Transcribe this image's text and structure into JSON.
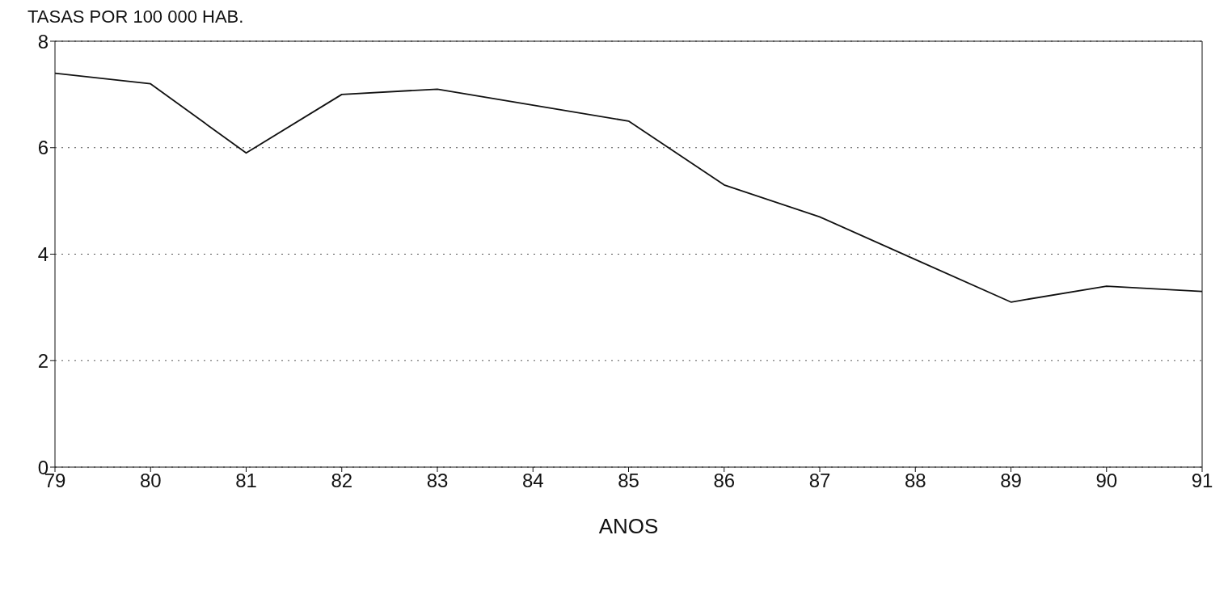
{
  "chart_data": {
    "type": "line",
    "ylabel": "TASAS POR 100 000 HAB.",
    "xlabel": "ANOS",
    "x": [
      79,
      80,
      81,
      82,
      83,
      84,
      85,
      86,
      87,
      88,
      89,
      90,
      91
    ],
    "series": [
      {
        "color": "#111111",
        "values": [
          7.4,
          7.2,
          5.9,
          7.0,
          7.1,
          6.8,
          6.5,
          5.3,
          4.7,
          3.9,
          3.1,
          3.4,
          3.3
        ]
      }
    ],
    "xlim": [
      79,
      91
    ],
    "xticks": [
      79,
      80,
      81,
      82,
      83,
      84,
      85,
      86,
      87,
      88,
      89,
      90,
      91
    ],
    "ylim": [
      0,
      8
    ],
    "yticks": [
      0,
      2,
      4,
      6,
      8
    ],
    "grid": "y",
    "legend": false,
    "marker": "none",
    "line_style": "solid"
  }
}
